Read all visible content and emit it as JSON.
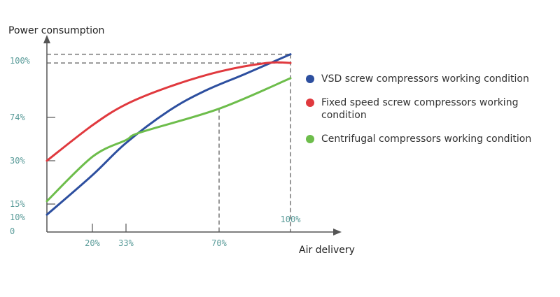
{
  "chart_data": {
    "type": "line",
    "ylabel": "Power consumption",
    "xlabel": "Air delivery",
    "x_ticks": [
      {
        "value": 20,
        "label": "20%"
      },
      {
        "value": 33,
        "label": "33%"
      },
      {
        "value": 70,
        "label": "70%"
      },
      {
        "value": 100,
        "label": "100%"
      }
    ],
    "y_ticks": [
      {
        "value": 0,
        "label": "0"
      },
      {
        "value": 10,
        "label": "10%"
      },
      {
        "value": 15,
        "label": "15%"
      },
      {
        "value": 30,
        "label": "30%"
      },
      {
        "value": 74,
        "label": "74%"
      },
      {
        "value": 100,
        "label": "100%"
      }
    ],
    "axis_scale": "non-uniform (tick-spaced)",
    "grid": false,
    "legend_position": "right",
    "reference_lines": {
      "vertical_dashed_x": [
        70,
        100
      ],
      "horizontal_dashed_y": [
        103,
        99
      ]
    },
    "series": [
      {
        "name": "VSD screw compressors working condition",
        "color": "#2d4f9f",
        "points": [
          [
            0,
            11
          ],
          [
            20,
            25
          ],
          [
            33,
            48
          ],
          [
            50,
            77
          ],
          [
            64,
            86
          ],
          [
            81,
            94
          ],
          [
            100,
            103
          ]
        ]
      },
      {
        "name": "Fixed speed screw compressors working condition",
        "color": "#e0393e",
        "points": [
          [
            0,
            30
          ],
          [
            20,
            66
          ],
          [
            33,
            80
          ],
          [
            50,
            88
          ],
          [
            70,
            95
          ],
          [
            90,
            99
          ],
          [
            100,
            99
          ]
        ]
      },
      {
        "name": "Centrifugal compressors working condition",
        "color": "#6dbd4b",
        "points": [
          [
            0,
            16
          ],
          [
            20,
            34
          ],
          [
            33,
            51
          ],
          [
            39,
            59
          ],
          [
            70,
            78
          ],
          [
            100,
            92
          ]
        ]
      }
    ]
  }
}
